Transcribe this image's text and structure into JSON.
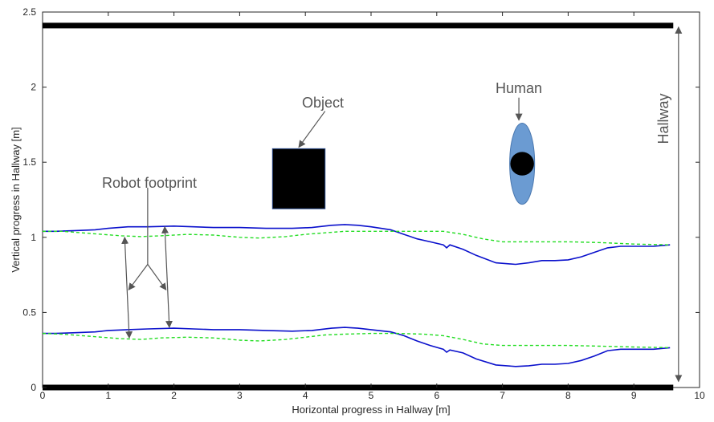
{
  "chart_data": {
    "type": "line",
    "title": "",
    "xlabel": "Horizontal progress in Hallway [m]",
    "ylabel": "Vertical progress in Hallway [m]",
    "xlim": [
      0,
      10
    ],
    "ylim": [
      0,
      2.5
    ],
    "xticks": [
      0,
      1,
      2,
      3,
      4,
      5,
      6,
      7,
      8,
      9,
      10
    ],
    "yticks": [
      0,
      0.5,
      1,
      1.5,
      2,
      2.5
    ],
    "grid": false,
    "walls": [
      {
        "name": "wall-bottom",
        "y": 0,
        "x": [
          0,
          9.6
        ]
      },
      {
        "name": "wall-top",
        "y": 2.41,
        "x": [
          0,
          9.6
        ]
      }
    ],
    "series": [
      {
        "name": "",
        "style": "solid",
        "color": "#0a10cc",
        "x": [
          0,
          0.2,
          0.5,
          0.8,
          1.0,
          1.3,
          1.6,
          2.0,
          2.3,
          2.6,
          3.0,
          3.4,
          3.8,
          4.1,
          4.4,
          4.6,
          4.8,
          5.0,
          5.3,
          5.5,
          5.7,
          5.9,
          6.1,
          6.15,
          6.2,
          6.4,
          6.6,
          6.9,
          7.2,
          7.4,
          7.6,
          7.8,
          8.0,
          8.2,
          8.4,
          8.6,
          8.8,
          9.0,
          9.3,
          9.55
        ],
        "y": [
          1.04,
          1.04,
          1.045,
          1.05,
          1.06,
          1.07,
          1.07,
          1.075,
          1.07,
          1.065,
          1.065,
          1.06,
          1.06,
          1.065,
          1.08,
          1.085,
          1.08,
          1.07,
          1.05,
          1.02,
          0.99,
          0.97,
          0.95,
          0.93,
          0.95,
          0.92,
          0.88,
          0.83,
          0.82,
          0.83,
          0.845,
          0.845,
          0.85,
          0.87,
          0.9,
          0.93,
          0.94,
          0.94,
          0.94,
          0.95
        ]
      },
      {
        "name": "",
        "style": "dashed",
        "color": "#22dd22",
        "x": [
          0,
          0.3,
          0.6,
          0.9,
          1.2,
          1.5,
          1.8,
          2.2,
          2.6,
          3.0,
          3.3,
          3.7,
          4.0,
          4.3,
          4.6,
          5.0,
          5.4,
          5.8,
          6.1,
          6.4,
          6.7,
          7.0,
          7.5,
          8.0,
          8.5,
          9.0,
          9.55
        ],
        "y": [
          1.04,
          1.04,
          1.03,
          1.02,
          1.01,
          1.005,
          1.01,
          1.02,
          1.015,
          1.0,
          0.995,
          1.005,
          1.02,
          1.03,
          1.04,
          1.04,
          1.04,
          1.04,
          1.04,
          1.02,
          0.99,
          0.97,
          0.97,
          0.97,
          0.965,
          0.955,
          0.95
        ]
      },
      {
        "name": "",
        "style": "solid",
        "color": "#0a10cc",
        "x": [
          0,
          0.2,
          0.5,
          0.8,
          1.0,
          1.3,
          1.6,
          2.0,
          2.3,
          2.6,
          3.0,
          3.4,
          3.8,
          4.1,
          4.4,
          4.6,
          4.8,
          5.0,
          5.3,
          5.5,
          5.7,
          5.9,
          6.1,
          6.15,
          6.2,
          6.4,
          6.6,
          6.9,
          7.2,
          7.4,
          7.6,
          7.8,
          8.0,
          8.2,
          8.4,
          8.6,
          8.8,
          9.0,
          9.3,
          9.55
        ],
        "y": [
          0.36,
          0.36,
          0.365,
          0.37,
          0.38,
          0.385,
          0.39,
          0.395,
          0.39,
          0.385,
          0.385,
          0.38,
          0.375,
          0.38,
          0.395,
          0.4,
          0.395,
          0.385,
          0.37,
          0.345,
          0.31,
          0.28,
          0.255,
          0.235,
          0.25,
          0.23,
          0.19,
          0.15,
          0.14,
          0.145,
          0.155,
          0.155,
          0.16,
          0.18,
          0.21,
          0.245,
          0.255,
          0.255,
          0.255,
          0.265
        ]
      },
      {
        "name": "",
        "style": "dashed",
        "color": "#22dd22",
        "x": [
          0,
          0.3,
          0.6,
          0.9,
          1.2,
          1.5,
          1.8,
          2.2,
          2.6,
          3.0,
          3.3,
          3.7,
          4.0,
          4.3,
          4.6,
          5.0,
          5.4,
          5.8,
          6.1,
          6.4,
          6.7,
          7.0,
          7.5,
          8.0,
          8.5,
          9.0,
          9.55
        ],
        "y": [
          0.36,
          0.355,
          0.345,
          0.335,
          0.325,
          0.32,
          0.33,
          0.335,
          0.33,
          0.315,
          0.31,
          0.32,
          0.335,
          0.35,
          0.355,
          0.36,
          0.36,
          0.355,
          0.345,
          0.32,
          0.29,
          0.28,
          0.28,
          0.28,
          0.275,
          0.27,
          0.265
        ]
      }
    ],
    "annotations": [
      {
        "text": "Object",
        "x": 4.25,
        "y": 1.82
      },
      {
        "text": "Human",
        "x": 7.25,
        "y": 1.98
      },
      {
        "text": "Robot footprint",
        "x": 1.64,
        "y": 1.36
      },
      {
        "text": "Hallway",
        "x": 9.43,
        "y": 1.77,
        "rotation": -90
      }
    ],
    "shapes": [
      {
        "name": "object-rect",
        "shape": "rectangle",
        "x": [
          3.5,
          4.3
        ],
        "y": [
          1.19,
          1.59
        ],
        "fill": "#000000"
      },
      {
        "name": "human-ellipse",
        "shape": "ellipse",
        "cx": 7.3,
        "cy": 1.49,
        "rx": 0.19,
        "ry": 0.27,
        "fill": "#6b9bd2"
      },
      {
        "name": "human-head",
        "shape": "circle",
        "cx": 7.3,
        "cy": 1.49,
        "r": 0.18,
        "fill": "#000000"
      }
    ]
  }
}
